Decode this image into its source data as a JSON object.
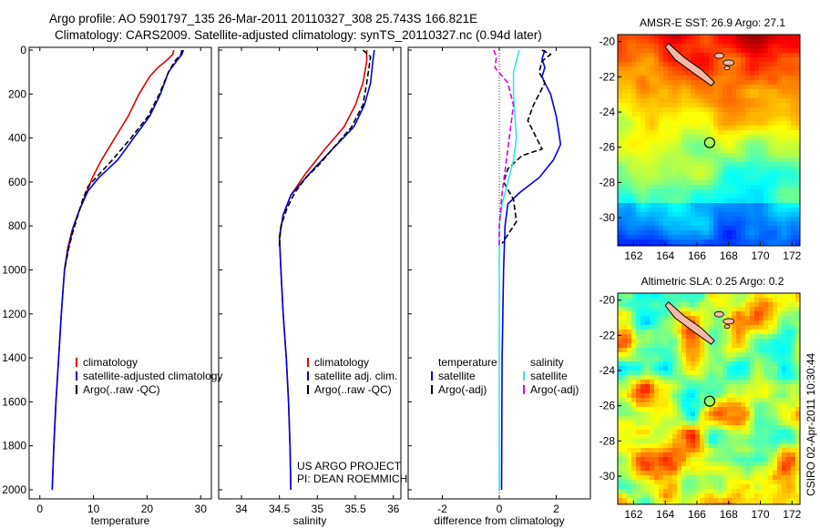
{
  "header": {
    "line1": "Argo profile: AO 5901797_135 26-Mar-2011 20110327_308 25.743S 166.821E",
    "line2": "Climatology: CARS2009. Satellite-adjusted climatology: synTS_20110327.nc (0.94d later)"
  },
  "side_label": "CSIRO 02-Apr-2011 10:30:44",
  "colors": {
    "climatology": "#e00000",
    "satellite": "#0000e0",
    "argo": "#000000",
    "sat_salt": "#33e6e6",
    "argo_salt": "#e000e0"
  },
  "chart_data": [
    {
      "type": "line",
      "xlabel": "temperature",
      "ylabel": "",
      "xlim": [
        -2,
        32
      ],
      "ylim": [
        2050,
        0
      ],
      "xticks": [
        0,
        10,
        20,
        30
      ],
      "yticks": [
        0,
        200,
        400,
        600,
        800,
        1000,
        1200,
        1400,
        1600,
        1800,
        2000
      ],
      "legend": [
        "climatology",
        "satellite-adjusted climatology",
        "Argo(..raw -QC)"
      ],
      "legend_position": "bottom-center",
      "series": [
        {
          "name": "climatology",
          "color": "#e00000",
          "dash": "",
          "points": [
            [
              25,
              0
            ],
            [
              24.8,
              20
            ],
            [
              23.5,
              50
            ],
            [
              22,
              80
            ],
            [
              20.5,
              120
            ],
            [
              18.5,
              200
            ],
            [
              16.5,
              300
            ],
            [
              14,
              400
            ],
            [
              11.5,
              500
            ],
            [
              9.8,
              580
            ],
            [
              8.5,
              660
            ],
            [
              7.2,
              740
            ],
            [
              6,
              820
            ],
            [
              5.2,
              900
            ],
            [
              4.6,
              1000
            ],
            [
              4,
              1200
            ],
            [
              3.5,
              1400
            ],
            [
              3,
              1600
            ],
            [
              2.6,
              1800
            ],
            [
              2.3,
              2000
            ]
          ]
        },
        {
          "name": "satellite-adjusted climatology",
          "color": "#0000e0",
          "dash": "",
          "points": [
            [
              26.8,
              0
            ],
            [
              26.5,
              20
            ],
            [
              25.5,
              50
            ],
            [
              24,
              100
            ],
            [
              22.5,
              200
            ],
            [
              20.5,
              300
            ],
            [
              17.5,
              400
            ],
            [
              14.5,
              500
            ],
            [
              11,
              580
            ],
            [
              9,
              640
            ],
            [
              7.5,
              720
            ],
            [
              6.3,
              800
            ],
            [
              5.3,
              900
            ],
            [
              4.6,
              1000
            ],
            [
              4,
              1200
            ],
            [
              3.5,
              1400
            ],
            [
              3,
              1600
            ],
            [
              2.6,
              1800
            ],
            [
              2.3,
              2000
            ]
          ]
        },
        {
          "name": "Argo(..raw -QC)",
          "color": "#000000",
          "dash": "6,3",
          "points": [
            [
              26.5,
              0
            ],
            [
              26.3,
              20
            ],
            [
              25.2,
              50
            ],
            [
              24,
              100
            ],
            [
              22.3,
              200
            ],
            [
              20.2,
              300
            ],
            [
              17,
              400
            ],
            [
              13.5,
              500
            ],
            [
              10.5,
              580
            ],
            [
              9,
              620
            ],
            [
              8,
              680
            ],
            [
              7,
              760
            ],
            [
              6,
              840
            ],
            [
              5.4,
              900
            ],
            [
              4.6,
              1000
            ]
          ]
        }
      ]
    },
    {
      "type": "line",
      "xlabel": "salinity",
      "ylabel": "",
      "xlim": [
        33.7,
        36.1
      ],
      "ylim": [
        2050,
        0
      ],
      "xticks": [
        34,
        34.5,
        35,
        35.5,
        36
      ],
      "yticks": [],
      "legend": [
        "climatology",
        "satellite adj. clim.",
        "Argo(..raw -QC)"
      ],
      "legend_position": "bottom-right",
      "series": [
        {
          "name": "climatology",
          "color": "#e00000",
          "dash": "",
          "points": [
            [
              35.65,
              0
            ],
            [
              35.65,
              50
            ],
            [
              35.6,
              150
            ],
            [
              35.5,
              250
            ],
            [
              35.35,
              350
            ],
            [
              35.1,
              450
            ],
            [
              34.85,
              560
            ],
            [
              34.65,
              660
            ],
            [
              34.55,
              750
            ],
            [
              34.5,
              850
            ],
            [
              34.52,
              1000
            ],
            [
              34.55,
              1200
            ],
            [
              34.59,
              1400
            ],
            [
              34.62,
              1600
            ],
            [
              34.64,
              1800
            ],
            [
              34.65,
              2000
            ]
          ]
        },
        {
          "name": "satellite adj. clim.",
          "color": "#0000e0",
          "dash": "",
          "points": [
            [
              35.75,
              0
            ],
            [
              35.73,
              50
            ],
            [
              35.7,
              150
            ],
            [
              35.62,
              250
            ],
            [
              35.48,
              350
            ],
            [
              35.2,
              450
            ],
            [
              34.9,
              560
            ],
            [
              34.65,
              660
            ],
            [
              34.55,
              750
            ],
            [
              34.5,
              850
            ],
            [
              34.52,
              1000
            ],
            [
              34.55,
              1200
            ],
            [
              34.59,
              1400
            ],
            [
              34.62,
              1600
            ],
            [
              34.64,
              1800
            ],
            [
              34.65,
              2000
            ]
          ]
        },
        {
          "name": "Argo(..raw -QC)",
          "color": "#000000",
          "dash": "6,3",
          "points": [
            [
              35.6,
              0
            ],
            [
              35.7,
              30
            ],
            [
              35.68,
              80
            ],
            [
              35.65,
              150
            ],
            [
              35.6,
              250
            ],
            [
              35.45,
              350
            ],
            [
              35.2,
              450
            ],
            [
              35,
              530
            ],
            [
              34.85,
              580
            ],
            [
              34.7,
              650
            ],
            [
              34.6,
              720
            ],
            [
              34.52,
              800
            ],
            [
              34.5,
              880
            ],
            [
              34.5,
              900
            ]
          ]
        }
      ]
    },
    {
      "type": "line",
      "xlabel": "difference from climatology",
      "ylabel": "",
      "xlim": [
        -3.2,
        3.2
      ],
      "ylim": [
        2050,
        0
      ],
      "xticks": [
        -2,
        0,
        2
      ],
      "yticks": [],
      "legend": [
        "temperature",
        "satellite",
        "Argo(-adj)",
        "salinity",
        "satellite",
        "Argo(-adj)"
      ],
      "legend_position": "bottom-center",
      "series": [
        {
          "name": "satellite",
          "group": "temperature",
          "color": "#0000e0",
          "dash": "",
          "points": [
            [
              1.6,
              0
            ],
            [
              1.5,
              40
            ],
            [
              1.6,
              80
            ],
            [
              1.5,
              120
            ],
            [
              1.6,
              150
            ],
            [
              1.8,
              200
            ],
            [
              2,
              300
            ],
            [
              2.1,
              380
            ],
            [
              2.15,
              430
            ],
            [
              1.9,
              500
            ],
            [
              1.4,
              580
            ],
            [
              0.7,
              650
            ],
            [
              0.3,
              700
            ],
            [
              0.2,
              800
            ],
            [
              0.15,
              1000
            ],
            [
              0.1,
              1400
            ],
            [
              0.08,
              2000
            ]
          ]
        },
        {
          "name": "Argo(-adj)",
          "group": "temperature",
          "color": "#000000",
          "dash": "6,3",
          "points": [
            [
              1.5,
              0
            ],
            [
              1.8,
              20
            ],
            [
              1.5,
              50
            ],
            [
              1.4,
              100
            ],
            [
              1.6,
              150
            ],
            [
              1.2,
              250
            ],
            [
              1,
              320
            ],
            [
              1.5,
              450
            ],
            [
              0.8,
              480
            ],
            [
              0.3,
              540
            ],
            [
              0.15,
              600
            ],
            [
              0.5,
              680
            ],
            [
              0.6,
              780
            ],
            [
              0.1,
              880
            ]
          ]
        },
        {
          "name": "satellite",
          "group": "salinity",
          "color": "#33e6e6",
          "dash": "",
          "points": [
            [
              0.7,
              0
            ],
            [
              0.6,
              50
            ],
            [
              0.5,
              100
            ],
            [
              0.5,
              200
            ],
            [
              0.55,
              300
            ],
            [
              0.6,
              400
            ],
            [
              0.5,
              500
            ],
            [
              0.3,
              600
            ],
            [
              0.1,
              700
            ],
            [
              0,
              800
            ],
            [
              0,
              1000
            ],
            [
              0,
              2000
            ]
          ]
        },
        {
          "name": "Argo(-adj)",
          "group": "salinity",
          "color": "#e000e0",
          "dash": "6,3",
          "points": [
            [
              -0.2,
              0
            ],
            [
              -0.1,
              30
            ],
            [
              -0.15,
              80
            ],
            [
              0.3,
              150
            ],
            [
              0.5,
              250
            ],
            [
              0.4,
              350
            ],
            [
              0.3,
              450
            ],
            [
              0.2,
              550
            ],
            [
              0.1,
              650
            ],
            [
              0,
              800
            ],
            [
              0,
              900
            ]
          ]
        }
      ]
    }
  ],
  "maps": [
    {
      "title": "AMSR-E SST: 26.9 Argo: 27.1",
      "kind": "sst",
      "lon_range": [
        161,
        172.5
      ],
      "lat_range": [
        -31.6,
        -19.6
      ],
      "xticks": [
        162,
        164,
        166,
        168,
        170,
        172
      ],
      "yticks": [
        -20,
        -22,
        -24,
        -26,
        -28,
        -30
      ],
      "marker": [
        166.8,
        -25.74
      ]
    },
    {
      "title": "Altimetric SLA: 0.25 Argo: 0.2",
      "kind": "sla",
      "lon_range": [
        161,
        172.5
      ],
      "lat_range": [
        -31.6,
        -19.6
      ],
      "xticks": [
        162,
        164,
        166,
        168,
        170,
        172
      ],
      "yticks": [
        -20,
        -22,
        -24,
        -26,
        -28,
        -30
      ],
      "marker": [
        166.8,
        -25.74
      ]
    }
  ],
  "annotations": [
    "US ARGO PROJECT",
    "PI: DEAN ROEMMICH"
  ]
}
